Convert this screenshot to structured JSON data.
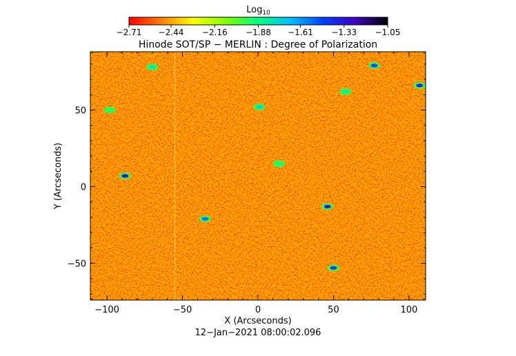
{
  "colorbar": {
    "title": "Log",
    "title_sub": "10",
    "ticks": [
      "−2.71",
      "−2.44",
      "−2.16",
      "−1.88",
      "−1.61",
      "−1.33",
      "−1.05"
    ],
    "tick_values": [
      -2.71,
      -2.44,
      -2.16,
      -1.88,
      -1.61,
      -1.33,
      -1.05
    ],
    "range": [
      -2.71,
      -1.05
    ],
    "colormap": [
      "#ff0000",
      "#ff8000",
      "#ffff00",
      "#80ff00",
      "#00ff80",
      "#00c0ff",
      "#0040ff",
      "#4000c0",
      "#000000"
    ]
  },
  "chart_data": {
    "type": "heatmap",
    "title": "Hinode SOT/SP − MERLIN : Degree of Polarization",
    "xlabel": "X (Arcseconds)",
    "ylabel": "Y (Arcseconds)",
    "xlim": [
      -111,
      111
    ],
    "ylim": [
      -74,
      88
    ],
    "xticks": [
      -100,
      -50,
      0,
      50,
      100
    ],
    "xtick_labels": [
      "−100",
      "−50",
      "0",
      "50",
      "100"
    ],
    "yticks": [
      -50,
      0,
      50
    ],
    "ytick_labels": [
      "−50",
      "0",
      "50"
    ],
    "footer": "12−Jan−2021 08:00:02.096",
    "background_level": -2.62,
    "features": [
      {
        "x": -88,
        "y": 7,
        "value": -1.33
      },
      {
        "x": 46,
        "y": -13,
        "value": -1.35
      },
      {
        "x": 50,
        "y": -53,
        "value": -1.45
      },
      {
        "x": 77,
        "y": 79,
        "value": -1.48
      },
      {
        "x": 107,
        "y": 66,
        "value": -1.4
      },
      {
        "x": -35,
        "y": -21,
        "value": -1.55
      },
      {
        "x": 1,
        "y": 52,
        "value": -1.75
      },
      {
        "x": -70,
        "y": 78,
        "value": -1.8
      },
      {
        "x": 14,
        "y": 15,
        "value": -1.9
      },
      {
        "x": -98,
        "y": 50,
        "value": -1.95
      },
      {
        "x": 58,
        "y": 62,
        "value": -1.85
      }
    ]
  }
}
